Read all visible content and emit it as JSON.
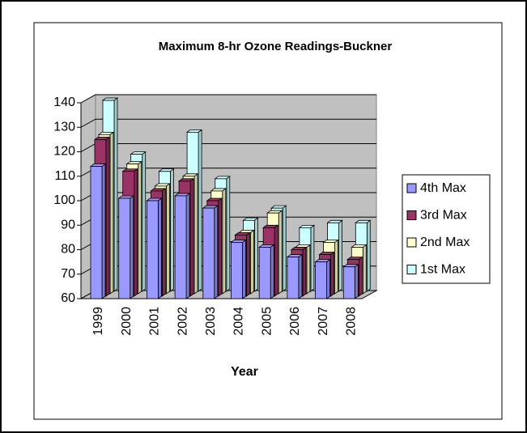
{
  "chart_data": {
    "type": "bar3d",
    "title": "Maximum 8-hr Ozone Readings-Buckner",
    "x_label": "Year",
    "categories": [
      "1999",
      "2000",
      "2001",
      "2002",
      "2003",
      "2004",
      "2005",
      "2006",
      "2007",
      "2008"
    ],
    "series": [
      {
        "name": "4th Max",
        "color": "#9999ff",
        "values": [
          114,
          101,
          100,
          102,
          97,
          83,
          81,
          77,
          75,
          73
        ]
      },
      {
        "name": "3rd Max",
        "color": "#993366",
        "values": [
          124,
          111,
          103,
          107,
          99,
          85,
          88,
          79,
          77,
          75
        ]
      },
      {
        "name": "2nd Max",
        "color": "#ffffcc",
        "values": [
          125,
          113,
          104,
          108,
          102,
          85,
          93,
          79,
          81,
          79
        ]
      },
      {
        "name": "1st Max",
        "color": "#ccffff",
        "values": [
          138,
          116,
          109,
          125,
          106,
          89,
          94,
          86,
          88,
          88
        ]
      }
    ],
    "ylim": [
      60,
      140
    ],
    "yticks": [
      60,
      70,
      80,
      90,
      100,
      110,
      120,
      130,
      140
    ],
    "grid": true,
    "legend": "right"
  }
}
